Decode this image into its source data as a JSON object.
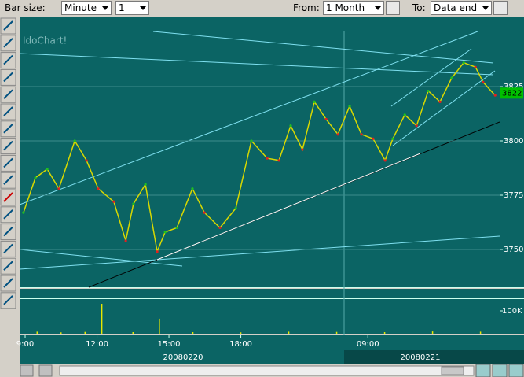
{
  "toolbar": {
    "bar_size_label": "Bar size:",
    "bar_size": "Minute",
    "bar_count": "1",
    "from_label": "From:",
    "from": "1 Month",
    "to_label": "To:",
    "to": "Data end"
  },
  "chart_data": {
    "type": "line",
    "watermark": "IdoChart!",
    "x": [
      -0.07,
      0.43,
      0.92,
      1.41,
      2.07,
      2.56,
      3.05,
      3.7,
      4.2,
      4.52,
      5.02,
      5.51,
      5.84,
      6.33,
      6.98,
      7.48,
      8.13,
      8.79,
      9.44,
      10.1,
      10.59,
      11.08,
      11.57,
      12.07,
      12.56,
      13.05,
      13.54,
      14.03,
      14.52,
      15.02,
      15.34,
      15.84,
      16.33,
      16.82,
      17.31,
      17.8,
      18.3,
      18.79,
      19.11,
      19.61
    ],
    "values": [
      3767,
      3783,
      3787,
      3778,
      3800,
      3791,
      3778,
      3772,
      3754,
      3771,
      3780,
      3749,
      3758,
      3760,
      3778,
      3767,
      3760,
      3769,
      3800,
      3792,
      3791,
      3807,
      3796,
      3818,
      3810,
      3803,
      3816,
      3803,
      3801,
      3791,
      3801,
      3812,
      3807,
      3823,
      3818,
      3829,
      3836,
      3834,
      3827,
      3821
    ],
    "color": "#d8d800",
    "last_price": 3822,
    "xlim": [
      -0.23,
      19.8
    ],
    "xticks": [
      {
        "value": 0,
        "label": "9:00"
      },
      {
        "value": 3,
        "label": "12:00"
      },
      {
        "value": 6,
        "label": "15:00"
      },
      {
        "value": 9,
        "label": "18:00"
      },
      {
        "value": 14.3,
        "label": "09:00"
      }
    ],
    "ylim": [
      3732.6,
      3856.9
    ],
    "yticks": [
      3750,
      3775,
      3800,
      3825
    ],
    "grid": true,
    "dates": [
      "20080220",
      "20080221"
    ],
    "volume": {
      "x": [
        0.5,
        1.5,
        2.5,
        3.2,
        4.5,
        5.6,
        7.0,
        9.0,
        11.0,
        13.0,
        15.0,
        17.0,
        19.0
      ],
      "values": [
        12000,
        9000,
        11000,
        130000,
        10000,
        67000,
        10000,
        9000,
        12000,
        11000,
        10000,
        13000,
        12000
      ],
      "color": "#e8e800",
      "ylim": [
        0,
        150000
      ],
      "yticks": [
        {
          "value": 100000,
          "label": "100K"
        }
      ]
    }
  }
}
